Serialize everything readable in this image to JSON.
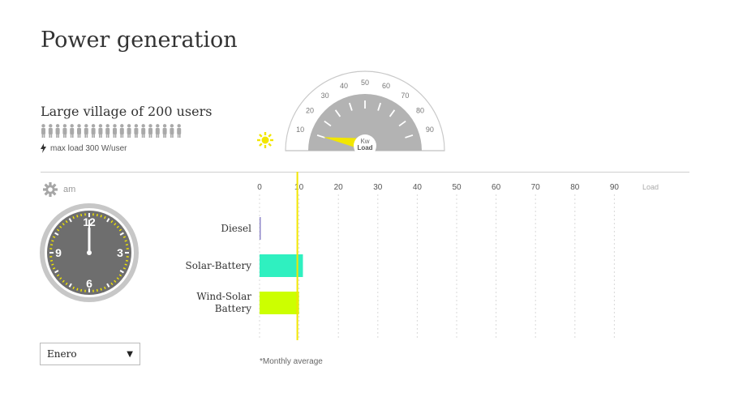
{
  "header": {
    "title": "Power generation",
    "subtitle": "Large village of 200 users",
    "max_load_text": "max load 300 W/user",
    "people_icon_count": 20
  },
  "time": {
    "period": "am",
    "clock": {
      "hour": 12,
      "minute": 0,
      "numerals": [
        "12",
        "3",
        "6",
        "9"
      ]
    }
  },
  "month_selector": {
    "selected": "Enero",
    "icon": "triangle-down-icon"
  },
  "gauge": {
    "unit_top": "Kw",
    "unit_bottom": "Load",
    "ticks": [
      "10",
      "20",
      "30",
      "40",
      "50",
      "60",
      "70",
      "80",
      "90"
    ],
    "value": 10,
    "min": 0,
    "max": 100
  },
  "chart_data": {
    "type": "bar",
    "orientation": "horizontal",
    "categories": [
      "Diesel",
      "Solar-Battery",
      "Wind-Solar Battery"
    ],
    "values": [
      0,
      11,
      10
    ],
    "colors": [
      "#8f87c9",
      "#2ff0c0",
      "#ccff00"
    ],
    "xlim": [
      0,
      100
    ],
    "x_ticks": [
      "0",
      "10",
      "20",
      "30",
      "40",
      "50",
      "60",
      "70",
      "80",
      "90"
    ],
    "xlabel": "Load",
    "load_marker": 10,
    "grid": true
  },
  "footnote": "*Monthly average",
  "colors": {
    "accent_yellow": "#f2e600",
    "gauge_gray": "#b3b3b3",
    "clock_face": "#6e6e6e"
  }
}
